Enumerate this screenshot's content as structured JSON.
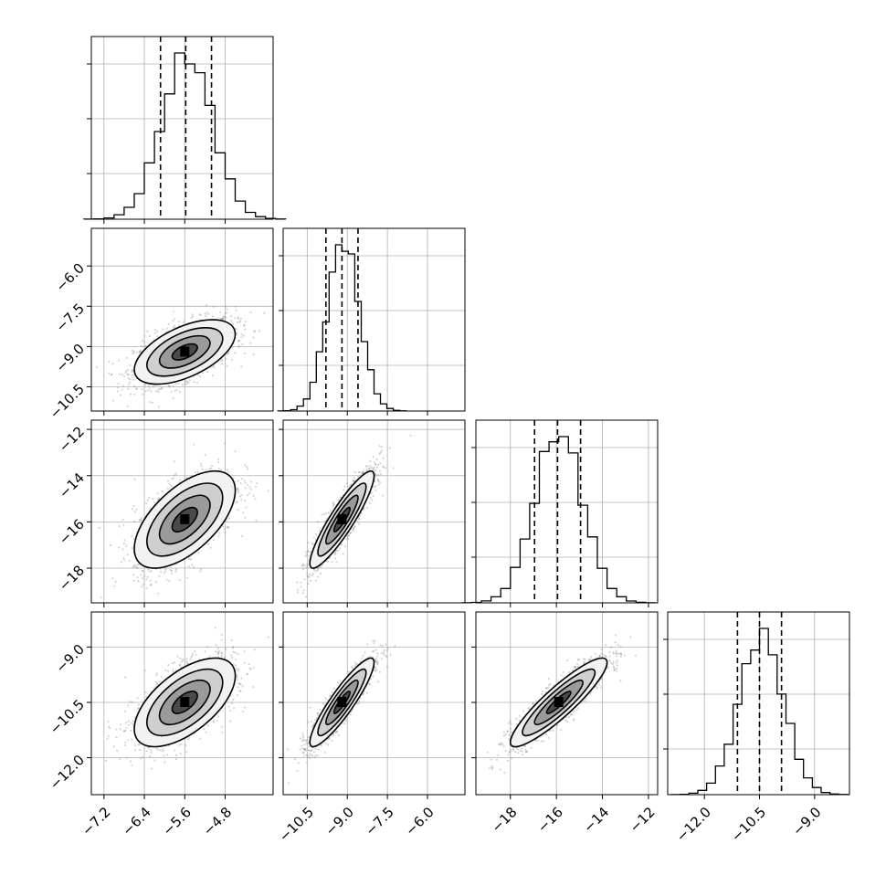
{
  "chart_data": {
    "type": "corner",
    "grid": true,
    "parameters": [
      {
        "id": "p0",
        "range": [
          -7.45,
          -3.85
        ],
        "ticks": [
          -7.2,
          -6.4,
          -5.6,
          -4.8
        ],
        "tick_labels": [
          "−7.2",
          "−6.4",
          "−5.6",
          "−4.8"
        ],
        "mean": -5.6,
        "sigma": 0.5,
        "quantiles": [
          -6.08,
          -5.58,
          -5.07
        ],
        "hist_peak_position": -5.55
      },
      {
        "id": "p1",
        "range": [
          -11.4,
          -4.6
        ],
        "ticks": [
          -10.5,
          -9.0,
          -7.5,
          -6.0
        ],
        "tick_labels": [
          "−10.5",
          "−9.0",
          "−7.5",
          "−6.0"
        ],
        "mean": -9.2,
        "sigma": 0.6,
        "quantiles": [
          -9.8,
          -9.2,
          -8.6
        ],
        "hist_peak_position": -9.15
      },
      {
        "id": "p2",
        "range": [
          -19.5,
          -11.6
        ],
        "ticks": [
          -18,
          -16,
          -14,
          -12
        ],
        "tick_labels": [
          "−18",
          "−16",
          "−14",
          "−12"
        ],
        "mean": -15.9,
        "sigma": 1.05,
        "quantiles": [
          -16.95,
          -15.95,
          -14.95
        ],
        "hist_peak_position": -15.9
      },
      {
        "id": "p3",
        "range": [
          -13.0,
          -8.05
        ],
        "ticks": [
          -12.0,
          -10.5,
          -9.0
        ],
        "tick_labels": [
          "−12.0",
          "−10.5",
          "−9.0"
        ],
        "mean": -10.5,
        "sigma": 0.6,
        "quantiles": [
          -11.1,
          -10.5,
          -9.9
        ],
        "hist_peak_position": -10.45
      }
    ],
    "correlations": [
      [
        1.0,
        0.55,
        0.6,
        0.6
      ],
      [
        0.55,
        1.0,
        0.9,
        0.9
      ],
      [
        0.6,
        0.9,
        1.0,
        0.9
      ],
      [
        0.6,
        0.9,
        0.9,
        1.0
      ]
    ],
    "contour_levels_sigma": [
      0.5,
      1.0,
      1.5,
      2.0
    ]
  }
}
